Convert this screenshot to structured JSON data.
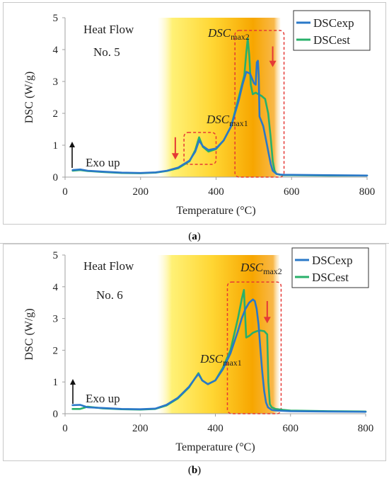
{
  "chart_data": [
    {
      "type": "line",
      "panel_label": "a",
      "title": "",
      "xlabel": "Temperature  (°C)",
      "ylabel": "DSC (W/g)",
      "xlim": [
        0,
        800
      ],
      "ylim": [
        0,
        5
      ],
      "xticks": [
        "0",
        "200",
        "400",
        "600",
        "800"
      ],
      "yticks": [
        "0",
        "1",
        "2",
        "3",
        "4",
        "5"
      ],
      "grid": false,
      "legend": "top-right",
      "shaded_range": [
        245,
        570
      ],
      "annotations": {
        "heat_flow": "Heat Flow",
        "sample": "No. 5",
        "exo": "Exo up",
        "peak1": "DSCmax1",
        "peak2": "DSCmax2"
      },
      "highlight_boxes": [
        {
          "x": [
            315,
            400
          ],
          "y": [
            0.4,
            1.4
          ]
        },
        {
          "x": [
            450,
            580
          ],
          "y": [
            0,
            4.6
          ]
        }
      ],
      "arrows": [
        {
          "x": 292,
          "y_from": 1.25,
          "y_to": 0.55
        },
        {
          "x": 550,
          "y_from": 4.1,
          "y_to": 3.45
        }
      ],
      "series": [
        {
          "name": "DSCexp",
          "color": "#2a78c8",
          "x": [
            20,
            40,
            60,
            100,
            150,
            200,
            240,
            270,
            300,
            330,
            345,
            355,
            365,
            380,
            400,
            420,
            440,
            460,
            470,
            480,
            490,
            495,
            500,
            505,
            508,
            511,
            513,
            515,
            520,
            525,
            530,
            535,
            540,
            545,
            550,
            560,
            570,
            580,
            600,
            700,
            800
          ],
          "y": [
            0.22,
            0.24,
            0.2,
            0.17,
            0.14,
            0.13,
            0.15,
            0.2,
            0.3,
            0.52,
            0.8,
            1.15,
            0.97,
            0.85,
            0.9,
            1.15,
            1.6,
            2.4,
            2.9,
            3.3,
            3.25,
            3.1,
            2.95,
            2.9,
            3.6,
            3.65,
            3.2,
            1.9,
            1.75,
            1.6,
            1.3,
            1.0,
            0.7,
            0.4,
            0.2,
            0.1,
            0.08,
            0.07,
            0.07,
            0.06,
            0.05
          ]
        },
        {
          "name": "DSCest",
          "color": "#28b06a",
          "x": [
            20,
            40,
            60,
            100,
            150,
            200,
            240,
            270,
            300,
            330,
            345,
            355,
            365,
            380,
            400,
            420,
            440,
            460,
            475,
            480,
            484,
            488,
            492,
            497,
            505,
            512,
            520,
            530,
            538,
            545,
            550,
            555,
            560,
            570,
            580,
            600,
            700,
            800
          ],
          "y": [
            0.2,
            0.22,
            0.19,
            0.16,
            0.13,
            0.12,
            0.14,
            0.19,
            0.28,
            0.5,
            0.85,
            1.25,
            0.95,
            0.8,
            0.88,
            1.15,
            1.6,
            2.5,
            3.2,
            3.9,
            4.35,
            3.8,
            2.9,
            2.6,
            2.65,
            2.6,
            2.55,
            2.45,
            2.0,
            1.2,
            0.5,
            0.2,
            0.1,
            0.07,
            0.06,
            0.06,
            0.05,
            0.05
          ]
        }
      ]
    },
    {
      "type": "line",
      "panel_label": "b",
      "title": "",
      "xlabel": "Temperature  (°C)",
      "ylabel": "DSC (W/g)",
      "xlim": [
        0,
        800
      ],
      "ylim": [
        0,
        5
      ],
      "xticks": [
        "0",
        "200",
        "400",
        "600",
        "800"
      ],
      "yticks": [
        "0",
        "1",
        "2",
        "3",
        "4",
        "5"
      ],
      "grid": false,
      "legend": "top-right",
      "shaded_range": [
        245,
        570
      ],
      "annotations": {
        "heat_flow": "Heat Flow",
        "sample": "No. 6",
        "exo": "Exo up",
        "peak1": "DSCmax1",
        "peak2": "DSCmax2"
      },
      "highlight_boxes": [
        {
          "x": [
            432,
            575
          ],
          "y": [
            0,
            4.15
          ]
        }
      ],
      "arrows": [
        {
          "x": 538,
          "y_from": 3.55,
          "y_to": 2.85
        }
      ],
      "series": [
        {
          "name": "DSCexp",
          "color": "#2a78c8",
          "x": [
            20,
            40,
            60,
            100,
            150,
            200,
            240,
            270,
            300,
            330,
            345,
            355,
            365,
            380,
            400,
            420,
            440,
            460,
            470,
            480,
            490,
            500,
            505,
            510,
            515,
            520,
            525,
            530,
            535,
            540,
            550,
            560,
            580,
            600,
            700,
            800
          ],
          "y": [
            0.27,
            0.28,
            0.2,
            0.18,
            0.15,
            0.14,
            0.16,
            0.28,
            0.5,
            0.85,
            1.1,
            1.25,
            1.05,
            0.93,
            1.05,
            1.4,
            1.9,
            2.6,
            3.0,
            3.3,
            3.5,
            3.6,
            3.55,
            3.3,
            2.8,
            2.0,
            1.3,
            0.7,
            0.35,
            0.2,
            0.12,
            0.1,
            0.09,
            0.08,
            0.07,
            0.06
          ]
        },
        {
          "name": "DSCest",
          "color": "#28b06a",
          "x": [
            20,
            40,
            60,
            100,
            150,
            200,
            240,
            270,
            300,
            330,
            345,
            355,
            365,
            380,
            400,
            420,
            440,
            460,
            470,
            476,
            482,
            490,
            500,
            510,
            520,
            530,
            538,
            541,
            545,
            550,
            560,
            580,
            600,
            700,
            800
          ],
          "y": [
            0.15,
            0.15,
            0.22,
            0.17,
            0.14,
            0.13,
            0.15,
            0.26,
            0.48,
            0.83,
            1.1,
            1.28,
            1.05,
            0.93,
            1.05,
            1.45,
            2.0,
            3.0,
            3.6,
            3.9,
            2.4,
            2.45,
            2.55,
            2.6,
            2.62,
            2.6,
            2.5,
            1.0,
            0.3,
            0.2,
            0.15,
            0.12,
            0.1,
            0.08,
            0.07
          ]
        }
      ]
    }
  ]
}
